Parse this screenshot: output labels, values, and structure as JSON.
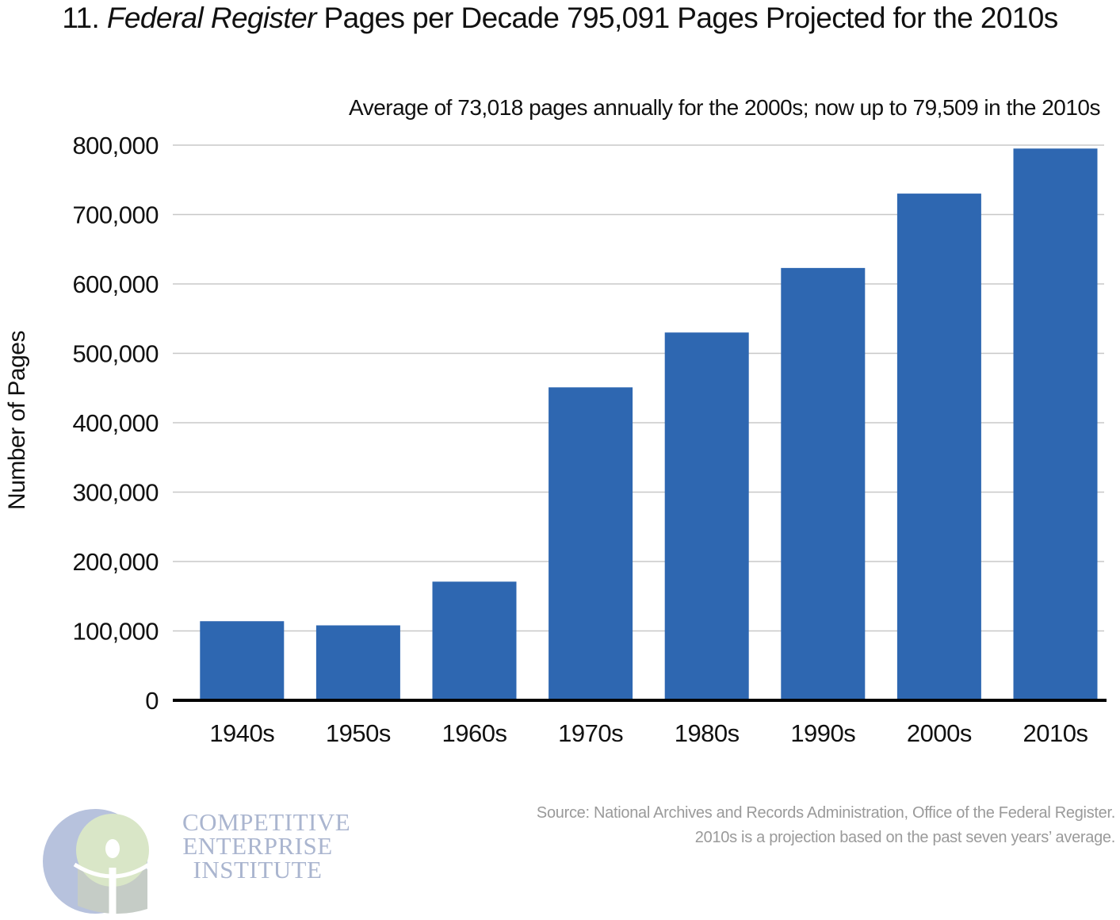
{
  "header": {
    "title_prefix": "11. ",
    "title_italic": "Federal Register",
    "title_suffix": " Pages per Decade 795,091 Pages Projected for the 2010s",
    "subtitle": "Average of 73,018 pages annually for the 2000s; now up to 79,509 in the 2010s"
  },
  "chart_data": {
    "type": "bar",
    "title": "Federal Register Pages per Decade 795,091 Pages Projected for the 2010s",
    "xlabel": "",
    "ylabel": "Number of Pages",
    "categories": [
      "1940s",
      "1950s",
      "1960s",
      "1970s",
      "1980s",
      "1990s",
      "2000s",
      "2010s"
    ],
    "values": [
      114000,
      108000,
      171000,
      451000,
      530000,
      623000,
      730176,
      795091
    ],
    "ylim": [
      0,
      800000
    ],
    "yticks": [
      0,
      100000,
      200000,
      300000,
      400000,
      500000,
      600000,
      700000,
      800000
    ],
    "ytick_labels": [
      "0",
      "100,000",
      "200,000",
      "300,000",
      "400,000",
      "500,000",
      "600,000",
      "700,000",
      "800,000"
    ],
    "grid": true,
    "bar_color": "#2e67b1",
    "grid_color": "#c8c8c8",
    "axis_color": "#000000"
  },
  "footer": {
    "source_line1": "Source: National Archives and Records Administration, Office of the Federal Register.",
    "source_line2": "2010s is a projection based on the past seven years’ average."
  },
  "logo": {
    "line1": "COMPETITIVE",
    "line2": "ENTERPRISE",
    "line3": "INSTITUTE",
    "colors": {
      "blue": "#b7c2dd",
      "green": "#d9e6c7",
      "gray": "#c5ccc6"
    }
  }
}
